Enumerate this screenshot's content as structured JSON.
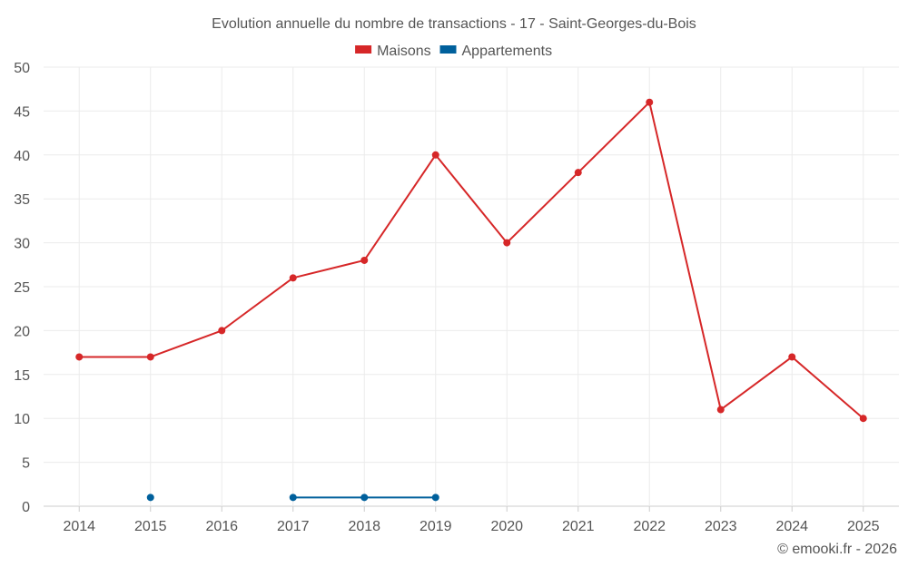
{
  "chart_data": {
    "type": "line",
    "title": "Evolution annuelle du nombre de transactions - 17 - Saint-Georges-du-Bois",
    "categories": [
      "2014",
      "2015",
      "2016",
      "2017",
      "2018",
      "2019",
      "2020",
      "2021",
      "2022",
      "2023",
      "2024",
      "2025"
    ],
    "series": [
      {
        "name": "Maisons",
        "color": "#d62728",
        "values": [
          17,
          17,
          20,
          26,
          28,
          40,
          30,
          38,
          46,
          11,
          17,
          10
        ]
      },
      {
        "name": "Appartements",
        "color": "#00609c",
        "values": [
          null,
          1,
          null,
          1,
          1,
          1,
          null,
          null,
          null,
          null,
          null,
          null
        ]
      }
    ],
    "ylim": [
      0,
      50
    ],
    "yticks": [
      0,
      5,
      10,
      15,
      20,
      25,
      30,
      35,
      40,
      45,
      50
    ],
    "grid": true,
    "legend": "top-center",
    "xlabel": "",
    "ylabel": ""
  },
  "credit": "© emooki.fr - 2026"
}
